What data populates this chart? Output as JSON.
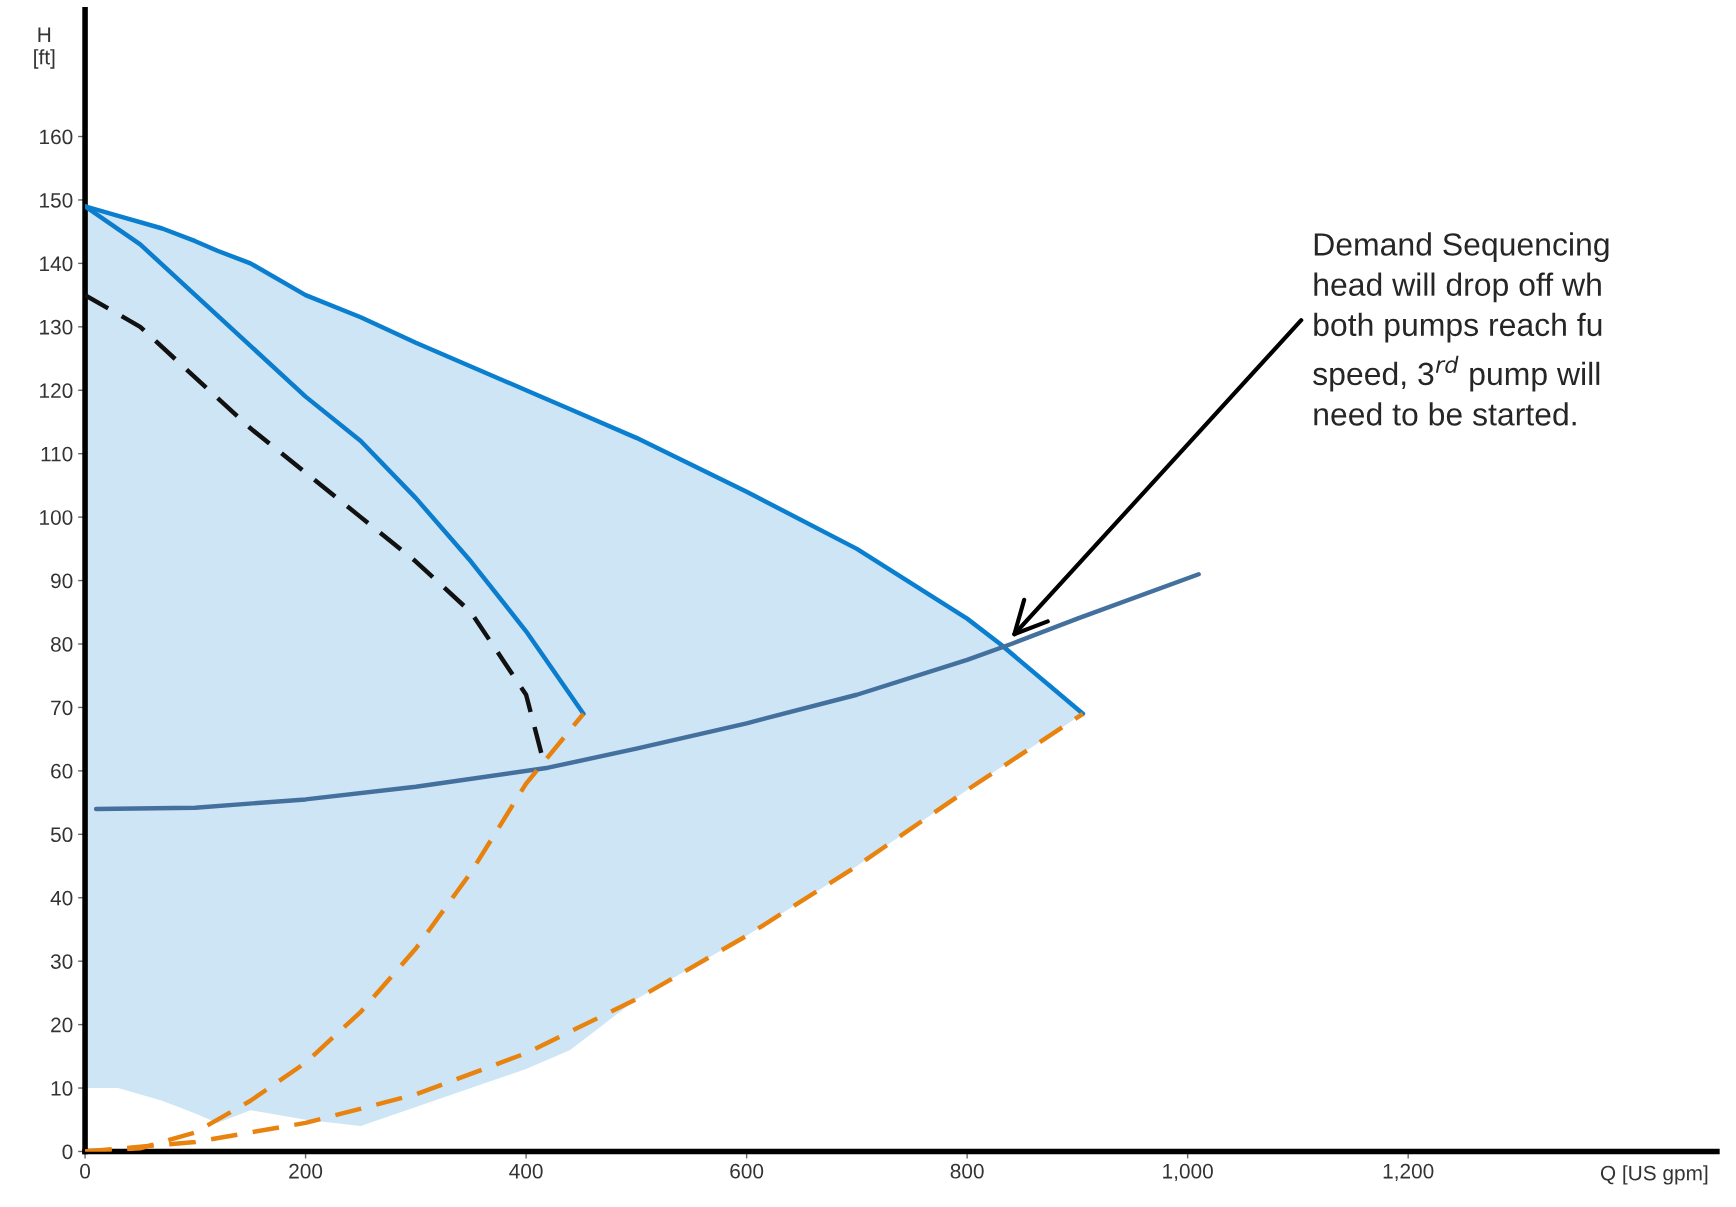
{
  "chart_data": {
    "type": "line",
    "xlabel": "Q [US gpm]",
    "ylabel": "H\n[ft]",
    "xlim": [
      0,
      1480
    ],
    "ylim": [
      0,
      180
    ],
    "xticks": [
      0,
      200,
      400,
      600,
      800,
      {
        "value": 1000,
        "label": "1,000"
      },
      {
        "value": 1200,
        "label": "1,200"
      }
    ],
    "yticks": [
      0,
      10,
      20,
      30,
      40,
      50,
      60,
      70,
      80,
      90,
      100,
      110,
      120,
      130,
      140,
      150,
      160
    ],
    "grid": false,
    "legend": false,
    "series": [
      {
        "color": "#0a7fcf",
        "line_style": "solid",
        "x": [
          0,
          30,
          70,
          100,
          120,
          150,
          200,
          250,
          300,
          400,
          440,
          500,
          600,
          700,
          800,
          830,
          905
        ],
        "values": [
          149,
          147.5,
          145.5,
          143.5,
          142,
          140,
          135,
          131.5,
          127.5,
          120,
          117,
          112.5,
          104,
          95,
          84,
          80,
          69
        ],
        "upper": [
          149,
          147.5,
          145.5,
          143.5,
          142,
          140,
          135,
          131.5,
          127.5,
          120,
          117,
          112.5,
          104,
          95,
          84,
          80,
          69
        ],
        "lower": [
          10,
          10,
          8,
          6,
          4.5,
          6.5,
          5,
          4,
          7,
          13,
          16,
          24,
          34,
          45,
          57,
          60.5,
          69
        ]
      },
      {
        "color": "#0c7dcc",
        "line_style": "solid",
        "x": [
          0,
          50,
          100,
          150,
          200,
          250,
          300,
          350,
          400,
          452
        ],
        "values": [
          149,
          143,
          135,
          127,
          119,
          112,
          103,
          93,
          82,
          69
        ]
      },
      {
        "color": "#111111",
        "line_style": "dashed",
        "x": [
          0,
          50,
          100,
          150,
          200,
          250,
          300,
          350,
          400,
          415
        ],
        "values": [
          135,
          130,
          122,
          114,
          107,
          100,
          93,
          85,
          72,
          62
        ]
      },
      {
        "color": "#43709d",
        "line_style": "solid",
        "x": [
          10,
          100,
          200,
          300,
          420,
          500,
          600,
          700,
          800,
          840,
          900,
          1010
        ],
        "values": [
          54,
          54.2,
          55.5,
          57.5,
          60.5,
          63.5,
          67.5,
          72,
          77.5,
          80,
          84,
          91
        ]
      },
      {
        "color": "#e8820e",
        "line_style": "dashed",
        "x": [
          0,
          50,
          100,
          150,
          200,
          250,
          300,
          350,
          400,
          452
        ],
        "values": [
          0,
          0.5,
          3,
          8,
          14,
          22,
          32,
          44,
          58,
          69
        ]
      },
      {
        "color": "#e9830f",
        "line_style": "dashed",
        "x": [
          0,
          100,
          200,
          300,
          400,
          500,
          600,
          700,
          800,
          905
        ],
        "values": [
          0,
          1.5,
          4.5,
          9,
          15.5,
          24,
          34,
          45,
          57,
          69
        ]
      }
    ],
    "annotations": [
      {
        "text": "Demand Sequencing\nhead will drop off wh\nboth pumps reach fu\nspeed, 3$^{rd}$ pump will\nneed to be started.",
        "x": 840,
        "y": 81
      }
    ]
  }
}
